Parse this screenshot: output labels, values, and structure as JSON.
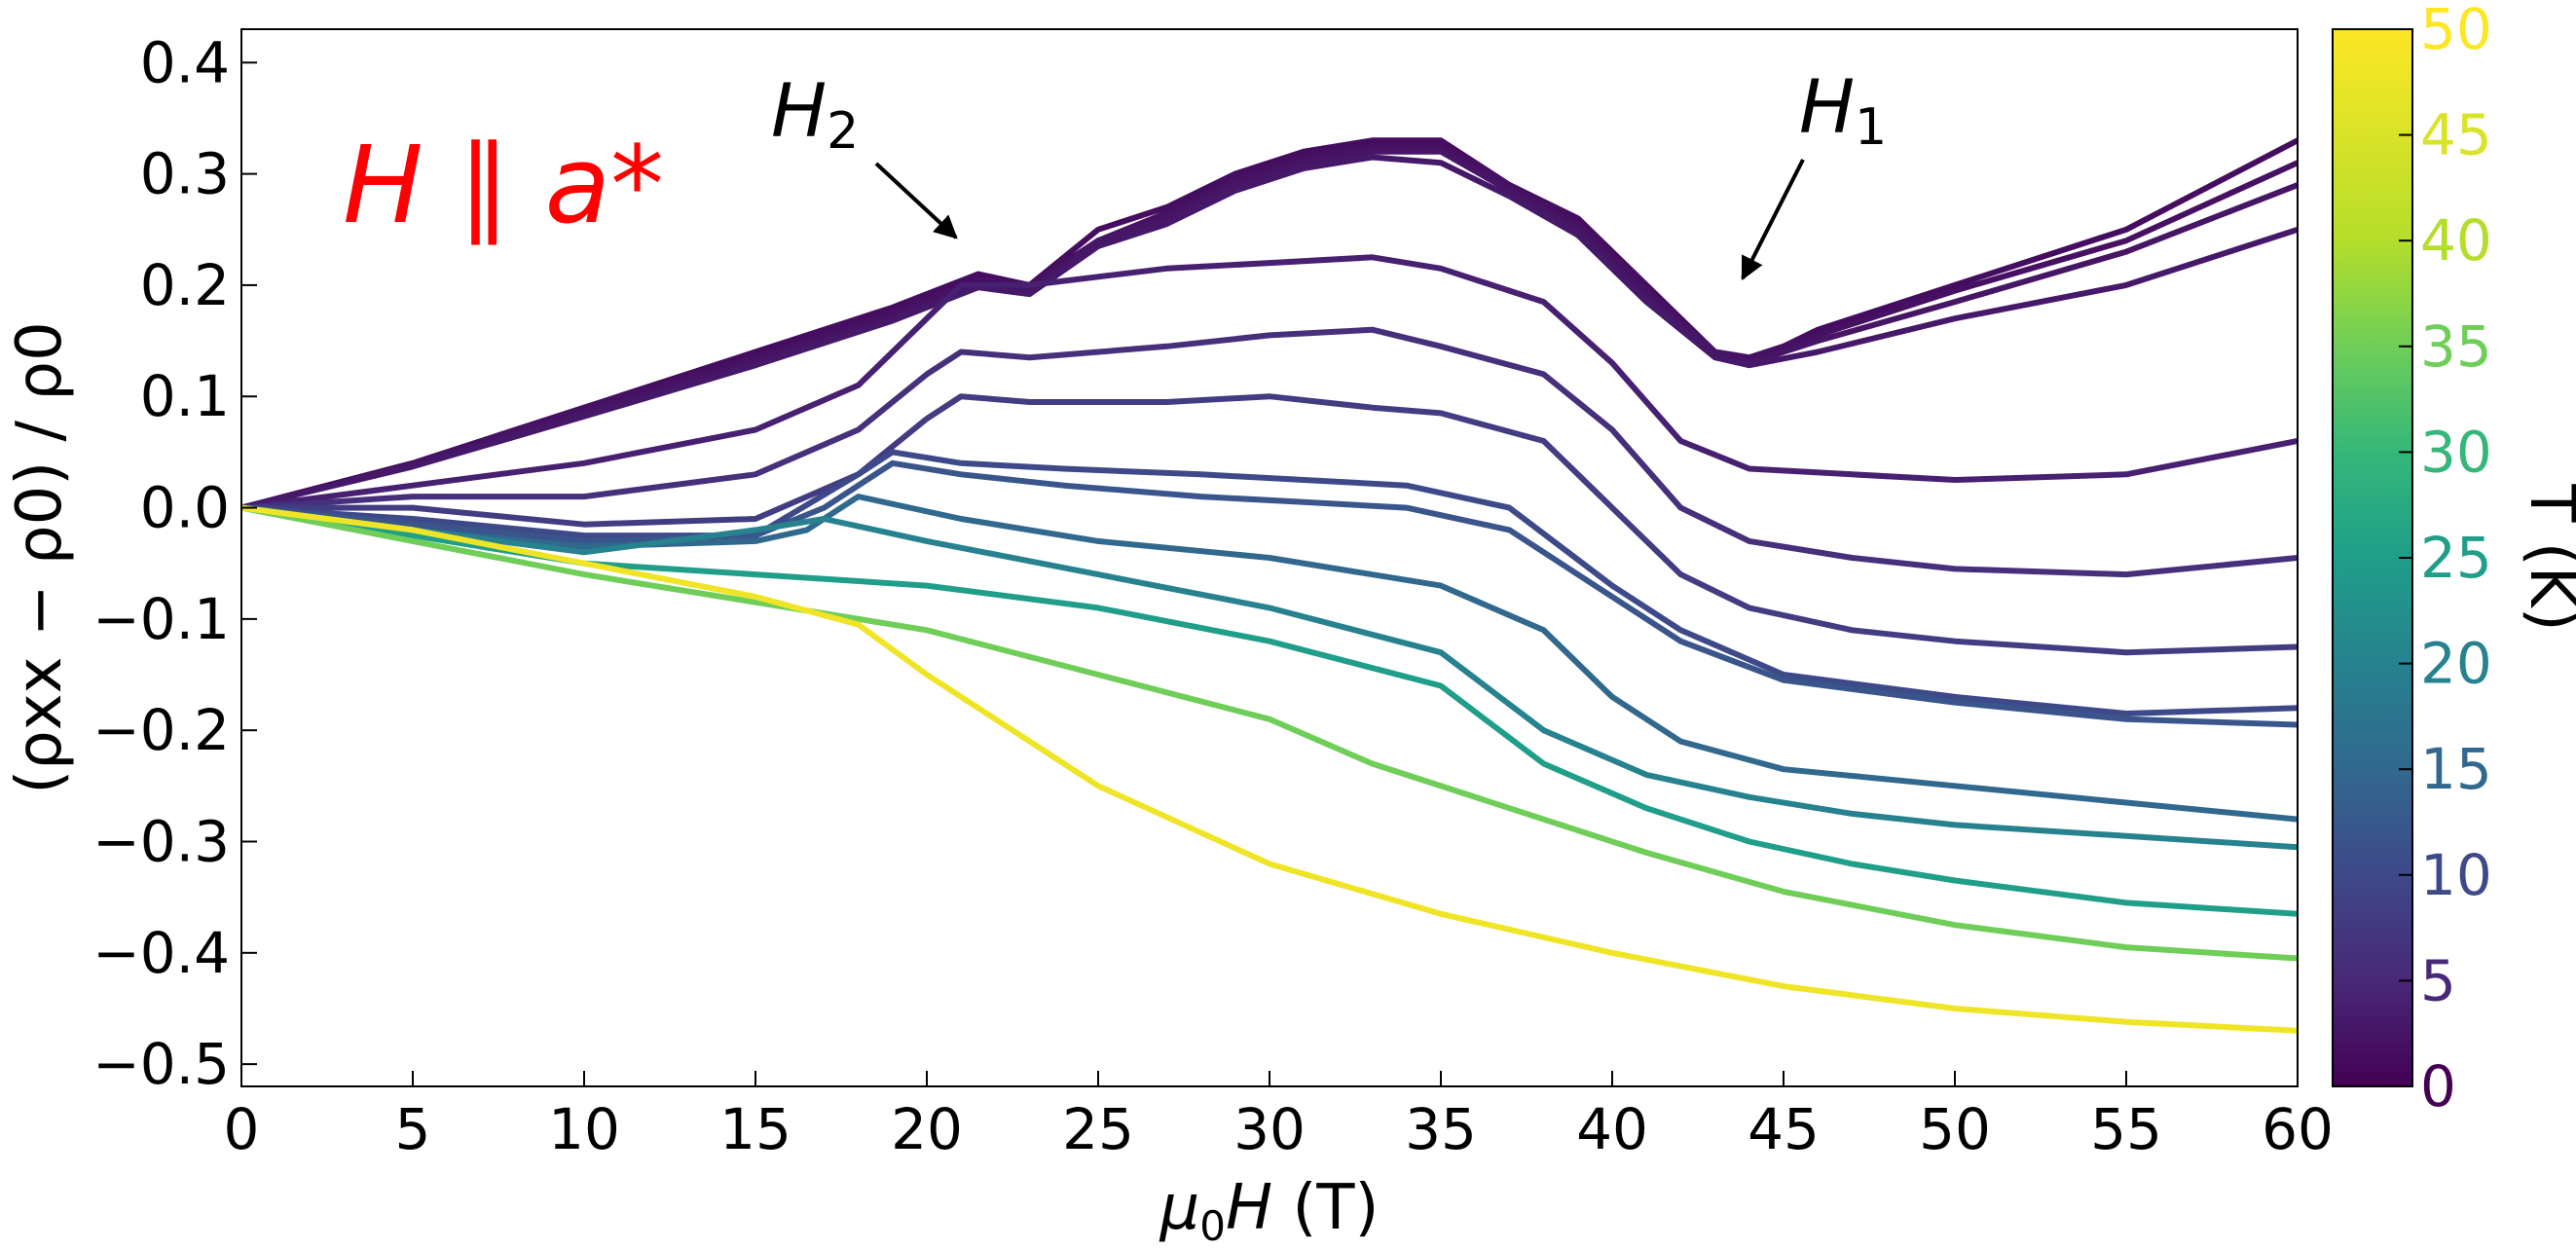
{
  "chart_data": {
    "type": "line",
    "xlabel_prefix": "μ",
    "xlabel_sub": "0",
    "xlabel_suffix": "H (T)",
    "ylabel": "(ρxx − ρ0) / ρ0",
    "xlim": [
      0,
      60
    ],
    "ylim": [
      -0.52,
      0.43
    ],
    "xticks": [
      0,
      5,
      10,
      15,
      20,
      25,
      30,
      35,
      40,
      45,
      50,
      55,
      60
    ],
    "yticks": [
      -0.5,
      -0.4,
      -0.3,
      -0.2,
      -0.1,
      0.0,
      0.1,
      0.2,
      0.3,
      0.4
    ],
    "ytick_labels": [
      "−0.5",
      "−0.4",
      "−0.3",
      "−0.2",
      "−0.1",
      "0.0",
      "0.1",
      "0.2",
      "0.3",
      "0.4"
    ],
    "grid": false,
    "colorbar": {
      "label": "T (K)",
      "range": [
        0,
        50
      ],
      "ticks": [
        0,
        5,
        10,
        15,
        20,
        25,
        30,
        35,
        40,
        45,
        50
      ],
      "colormap": "viridis"
    },
    "annotations": [
      {
        "text": "H",
        "sub": "2",
        "arrow_to": [
          21.5,
          0.24
        ]
      },
      {
        "text": "H",
        "sub": "1",
        "arrow_to": [
          43.5,
          0.2
        ]
      }
    ],
    "field_label": {
      "text": "H ∥ a*",
      "color": "#ff0000"
    },
    "series": [
      {
        "T": 1.5,
        "x": [
          0,
          5,
          10,
          15,
          19,
          21.5,
          23,
          25,
          27,
          29,
          31,
          33,
          35,
          37,
          39,
          41,
          43,
          44,
          46,
          50,
          55,
          60
        ],
        "y": [
          0,
          0.04,
          0.09,
          0.14,
          0.18,
          0.21,
          0.2,
          0.25,
          0.27,
          0.3,
          0.32,
          0.33,
          0.33,
          0.29,
          0.26,
          0.2,
          0.14,
          0.13,
          0.16,
          0.2,
          0.25,
          0.33
        ]
      },
      {
        "T": 2.0,
        "x": [
          0,
          5,
          10,
          15,
          19,
          21.5,
          23,
          25,
          27,
          29,
          31,
          33,
          35,
          37,
          39,
          41,
          43,
          44,
          46,
          50,
          55,
          60
        ],
        "y": [
          0,
          0.04,
          0.09,
          0.135,
          0.175,
          0.205,
          0.2,
          0.24,
          0.265,
          0.295,
          0.315,
          0.325,
          0.325,
          0.29,
          0.255,
          0.195,
          0.14,
          0.135,
          0.155,
          0.195,
          0.24,
          0.31
        ]
      },
      {
        "T": 2.5,
        "x": [
          0,
          5,
          10,
          15,
          19,
          21.5,
          23,
          25,
          27,
          29,
          31,
          33,
          35,
          37,
          39,
          41,
          43,
          44,
          46,
          50,
          55,
          60
        ],
        "y": [
          0,
          0.038,
          0.085,
          0.13,
          0.17,
          0.2,
          0.195,
          0.24,
          0.26,
          0.29,
          0.31,
          0.32,
          0.32,
          0.285,
          0.25,
          0.19,
          0.14,
          0.13,
          0.15,
          0.185,
          0.23,
          0.29
        ]
      },
      {
        "T": 3.0,
        "x": [
          0,
          5,
          10,
          15,
          19,
          21.5,
          23,
          25,
          27,
          29,
          31,
          33,
          35,
          37,
          39,
          41,
          43,
          44,
          46,
          50,
          55,
          60
        ],
        "y": [
          0,
          0.037,
          0.082,
          0.128,
          0.168,
          0.198,
          0.192,
          0.235,
          0.255,
          0.285,
          0.305,
          0.315,
          0.31,
          0.28,
          0.245,
          0.185,
          0.135,
          0.128,
          0.14,
          0.17,
          0.2,
          0.25
        ]
      },
      {
        "T": 4.0,
        "x": [
          0,
          5,
          10,
          15,
          18,
          20,
          21,
          23,
          27,
          30,
          33,
          35,
          38,
          40,
          42,
          44,
          47,
          50,
          55,
          60
        ],
        "y": [
          0,
          0.02,
          0.04,
          0.07,
          0.11,
          0.17,
          0.2,
          0.2,
          0.215,
          0.22,
          0.225,
          0.215,
          0.185,
          0.13,
          0.06,
          0.035,
          0.03,
          0.025,
          0.03,
          0.06
        ]
      },
      {
        "T": 6.0,
        "x": [
          0,
          5,
          10,
          15,
          18,
          20,
          21,
          23,
          27,
          30,
          33,
          35,
          38,
          40,
          42,
          44,
          47,
          50,
          55,
          60
        ],
        "y": [
          0,
          0.01,
          0.01,
          0.03,
          0.07,
          0.12,
          0.14,
          0.135,
          0.145,
          0.155,
          0.16,
          0.145,
          0.12,
          0.07,
          0.0,
          -0.03,
          -0.045,
          -0.055,
          -0.06,
          -0.045
        ]
      },
      {
        "T": 8.0,
        "x": [
          0,
          5,
          10,
          15,
          18,
          20,
          21,
          23,
          27,
          30,
          33,
          35,
          38,
          40,
          42,
          44,
          47,
          50,
          55,
          60
        ],
        "y": [
          0,
          0.0,
          -0.015,
          -0.01,
          0.03,
          0.08,
          0.1,
          0.095,
          0.095,
          0.1,
          0.09,
          0.085,
          0.06,
          0.0,
          -0.06,
          -0.09,
          -0.11,
          -0.12,
          -0.13,
          -0.125
        ]
      },
      {
        "T": 10.0,
        "x": [
          0,
          5,
          10,
          15,
          18,
          19,
          21,
          24,
          28,
          31,
          34,
          37,
          40,
          42,
          45,
          50,
          55,
          60
        ],
        "y": [
          0,
          -0.01,
          -0.025,
          -0.025,
          0.03,
          0.05,
          0.04,
          0.035,
          0.03,
          0.025,
          0.02,
          0.0,
          -0.07,
          -0.11,
          -0.15,
          -0.17,
          -0.185,
          -0.18
        ]
      },
      {
        "T": 12.0,
        "x": [
          0,
          5,
          10,
          15,
          17,
          19,
          21,
          24,
          28,
          31,
          34,
          37,
          40,
          42,
          45,
          50,
          55,
          60
        ],
        "y": [
          0,
          -0.015,
          -0.03,
          -0.025,
          0.0,
          0.04,
          0.03,
          0.02,
          0.01,
          0.005,
          0.0,
          -0.02,
          -0.08,
          -0.12,
          -0.155,
          -0.175,
          -0.19,
          -0.195
        ]
      },
      {
        "T": 15.0,
        "x": [
          0,
          5,
          10,
          15,
          16.5,
          18,
          21,
          25,
          30,
          35,
          38,
          40,
          42,
          45,
          50,
          55,
          60
        ],
        "y": [
          0,
          -0.02,
          -0.035,
          -0.03,
          -0.02,
          0.01,
          -0.01,
          -0.03,
          -0.045,
          -0.07,
          -0.11,
          -0.17,
          -0.21,
          -0.235,
          -0.25,
          -0.265,
          -0.28
        ]
      },
      {
        "T": 20.0,
        "x": [
          0,
          5,
          10,
          15,
          17,
          20,
          25,
          30,
          35,
          38,
          41,
          44,
          47,
          50,
          55,
          60
        ],
        "y": [
          0,
          -0.02,
          -0.04,
          -0.02,
          -0.01,
          -0.03,
          -0.06,
          -0.09,
          -0.13,
          -0.2,
          -0.24,
          -0.26,
          -0.275,
          -0.285,
          -0.295,
          -0.305
        ]
      },
      {
        "T": 25.0,
        "x": [
          0,
          5,
          10,
          15,
          20,
          25,
          30,
          35,
          38,
          41,
          44,
          47,
          50,
          55,
          60
        ],
        "y": [
          0,
          -0.025,
          -0.05,
          -0.06,
          -0.07,
          -0.09,
          -0.12,
          -0.16,
          -0.23,
          -0.27,
          -0.3,
          -0.32,
          -0.335,
          -0.355,
          -0.365
        ]
      },
      {
        "T": 35.0,
        "x": [
          0,
          5,
          10,
          15,
          20,
          25,
          30,
          33,
          37,
          41,
          45,
          50,
          55,
          60
        ],
        "y": [
          0,
          -0.03,
          -0.06,
          -0.085,
          -0.11,
          -0.15,
          -0.19,
          -0.23,
          -0.27,
          -0.31,
          -0.345,
          -0.375,
          -0.395,
          -0.405
        ]
      },
      {
        "T": 48.0,
        "x": [
          0,
          5,
          10,
          15,
          18,
          20,
          25,
          30,
          35,
          40,
          45,
          50,
          55,
          60
        ],
        "y": [
          0,
          -0.02,
          -0.05,
          -0.08,
          -0.105,
          -0.15,
          -0.25,
          -0.32,
          -0.365,
          -0.4,
          -0.43,
          -0.45,
          -0.462,
          -0.47
        ]
      }
    ]
  }
}
